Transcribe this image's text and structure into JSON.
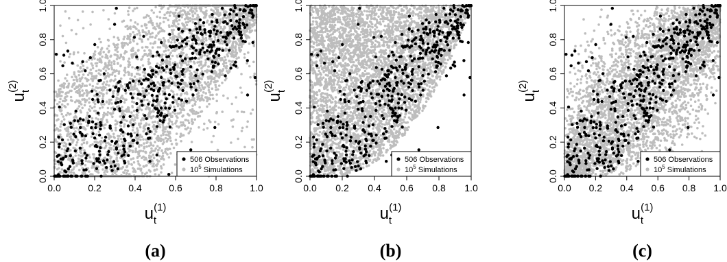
{
  "chart_data": [
    {
      "type": "scatter",
      "panel_label": "(a)",
      "xlabel": {
        "base": "u",
        "subscript": "t",
        "superscript": "(1)"
      },
      "ylabel": {
        "base": "u",
        "subscript": "t",
        "superscript": "(2)"
      },
      "xlim": [
        0,
        1
      ],
      "ylim": [
        0,
        1
      ],
      "xticks": [
        "0.0",
        "0.2",
        "0.4",
        "0.6",
        "0.8",
        "1.0"
      ],
      "yticks": [
        "0.0",
        "0.2",
        "0.4",
        "0.6",
        "0.8",
        "1.0"
      ],
      "legend": {
        "placement": "bottom-right",
        "entries": [
          {
            "label": "506 Observations",
            "color": "#000000"
          },
          {
            "label": "10",
            "superscript": "5",
            "label_suffix": " Simulations",
            "color": "#bdbdbd"
          }
        ]
      },
      "series": [
        {
          "name": "506 Observations",
          "color": "#000000",
          "count": 506,
          "dependence": "moderate positive, strongest in upper tail",
          "points": []
        },
        {
          "name": "10^5 Simulations",
          "color": "#bdbdbd",
          "dependence": "moderate positive, spread over most of unit square",
          "points": []
        }
      ]
    },
    {
      "type": "scatter",
      "panel_label": "(b)",
      "xlabel": {
        "base": "u",
        "subscript": "t",
        "superscript": "(1)"
      },
      "ylabel": {
        "base": "u",
        "subscript": "t",
        "superscript": "(2)"
      },
      "xlim": [
        0,
        1
      ],
      "ylim": [
        0,
        1
      ],
      "xticks": [
        "0.0",
        "0.2",
        "0.4",
        "0.6",
        "0.8",
        "1.0"
      ],
      "yticks": [
        "0.0",
        "0.2",
        "0.4",
        "0.6",
        "0.8",
        "1.0"
      ],
      "legend": {
        "placement": "bottom-right",
        "entries": [
          {
            "label": "506 Observations",
            "color": "#000000"
          },
          {
            "label": "10",
            "superscript": "5",
            "label_suffix": " Simulations",
            "color": "#bdbdbd"
          }
        ]
      },
      "series": [
        {
          "name": "506 Observations",
          "color": "#000000",
          "count": 506,
          "dependence": "moderate positive, strongest in upper tail",
          "points": []
        },
        {
          "name": "10^5 Simulations",
          "color": "#bdbdbd",
          "dependence": "positive, confined above a convex lower boundary",
          "points": []
        }
      ]
    },
    {
      "type": "scatter",
      "panel_label": "(c)",
      "xlabel": {
        "base": "u",
        "subscript": "t",
        "superscript": "(1)"
      },
      "ylabel": {
        "base": "u",
        "subscript": "t",
        "superscript": "(2)"
      },
      "xlim": [
        0,
        1
      ],
      "ylim": [
        0,
        1
      ],
      "xticks": [
        "0.0",
        "0.2",
        "0.4",
        "0.6",
        "0.8",
        "1.0"
      ],
      "yticks": [
        "0.0",
        "0.2",
        "0.4",
        "0.6",
        "0.8",
        "1.0"
      ],
      "legend": {
        "placement": "bottom-right",
        "entries": [
          {
            "label": "506 Observations",
            "color": "#000000"
          },
          {
            "label": "10",
            "superscript": "5",
            "label_suffix": " Simulations",
            "color": "#bdbdbd"
          }
        ]
      },
      "series": [
        {
          "name": "506 Observations",
          "color": "#000000",
          "count": 506,
          "dependence": "moderate positive, strongest in upper tail",
          "points": []
        },
        {
          "name": "10^5 Simulations",
          "color": "#bdbdbd",
          "dependence": "strong positive, absent from upper-left and lower-right corners",
          "points": []
        }
      ]
    }
  ]
}
